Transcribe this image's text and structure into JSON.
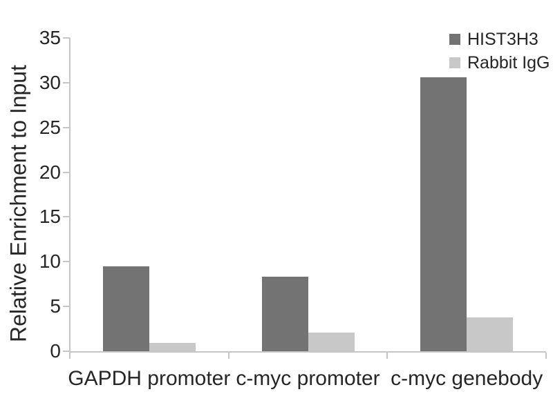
{
  "figure": {
    "background": "#ffffff",
    "text_color": "#262626",
    "axis_color": "#c6c6c6"
  },
  "legend": {
    "position": "top-right",
    "items": [
      {
        "label": "HIST3H3",
        "color": "#737373"
      },
      {
        "label": "Rabbit IgG",
        "color": "#c8c8c8"
      }
    ]
  },
  "chart_data": {
    "type": "bar",
    "title": "",
    "categories": [
      "GAPDH promoter",
      "c-myc promoter",
      "c-myc genebody"
    ],
    "series": [
      {
        "name": "HIST3H3",
        "color": "#737373",
        "values": [
          9.5,
          8.3,
          30.6
        ]
      },
      {
        "name": "Rabbit IgG",
        "color": "#c8c8c8",
        "values": [
          0.9,
          2.1,
          3.8
        ]
      }
    ],
    "xlabel": "",
    "ylabel": "Relative Enrichment to Input",
    "ylim": [
      0,
      35
    ],
    "ytick_step": 5,
    "ytick_labels": [
      "0",
      "5",
      "10",
      "15",
      "20",
      "25",
      "30",
      "35"
    ],
    "grid": false,
    "legend_position": "top-right",
    "bar_orientation": "vertical"
  }
}
